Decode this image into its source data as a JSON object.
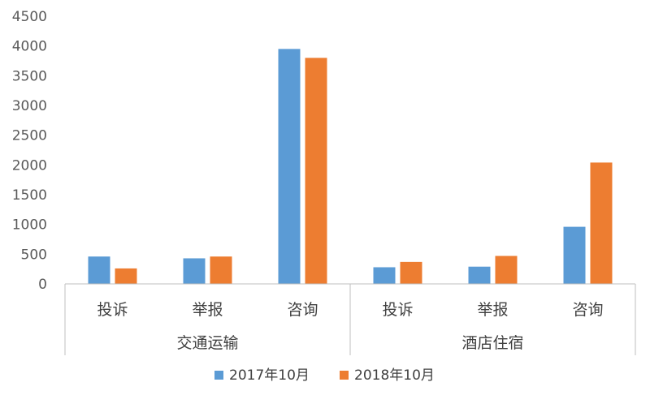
{
  "chart_data": {
    "type": "bar",
    "title": "",
    "xlabel": "",
    "ylabel": "",
    "ylim": [
      0,
      4500
    ],
    "yticks": [
      0,
      500,
      1000,
      1500,
      2000,
      2500,
      3000,
      3500,
      4000,
      4500
    ],
    "grid": false,
    "legend": "bottom",
    "groups": [
      {
        "label": "交通运输",
        "categories": [
          "投诉",
          "举报",
          "咨询"
        ]
      },
      {
        "label": "酒店住宿",
        "categories": [
          "投诉",
          "举报",
          "咨询"
        ]
      }
    ],
    "series": [
      {
        "name": "2017年10月",
        "color": "#5B9BD5",
        "values": [
          460,
          430,
          3950,
          280,
          290,
          960
        ]
      },
      {
        "name": "2018年10月",
        "color": "#ED7D31",
        "values": [
          260,
          460,
          3800,
          370,
          470,
          2040
        ]
      }
    ]
  }
}
